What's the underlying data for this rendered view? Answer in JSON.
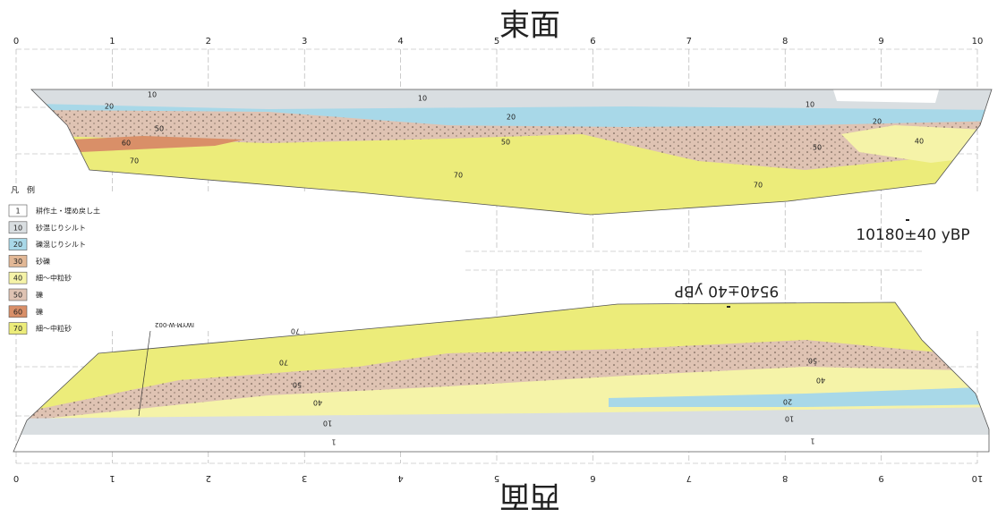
{
  "title_top": "東面",
  "title_bottom": "西面",
  "scale_top": [
    "0",
    "1",
    "2",
    "3",
    "4",
    "5",
    "6",
    "7",
    "8",
    "9",
    "10"
  ],
  "scale_bottom": [
    "0",
    "1",
    "2",
    "3",
    "4",
    "5",
    "6",
    "7",
    "8",
    "9",
    "10"
  ],
  "legend": {
    "title": "凡　例",
    "items": [
      {
        "code": "1",
        "label": "耕作土・埋め戻し土",
        "color": "#ffffff"
      },
      {
        "code": "10",
        "label": "砂混じりシルト",
        "color": "#d9dee1"
      },
      {
        "code": "20",
        "label": "礫混じりシルト",
        "color": "#a8d8e8"
      },
      {
        "code": "30",
        "label": "砂礫",
        "color": "#e2b896"
      },
      {
        "code": "40",
        "label": "細～中粒砂",
        "color": "#f5f3a8"
      },
      {
        "code": "50",
        "label": "礫",
        "color": "#dfc3b3"
      },
      {
        "code": "60",
        "label": "礫",
        "color": "#d98f68"
      },
      {
        "code": "70",
        "label": "細～中粒砂",
        "color": "#ecec7a"
      }
    ]
  },
  "date_east": "10180±40 yBP",
  "date_west": "9540±40 yBP",
  "sample_label": "IWYM-W-002",
  "east_labels": [
    "10",
    "10",
    "10",
    "20",
    "20",
    "20",
    "50",
    "50",
    "50",
    "60",
    "70",
    "70",
    "70",
    "40"
  ],
  "west_labels": [
    "70",
    "70",
    "50",
    "50",
    "40",
    "40",
    "20",
    "10",
    "10",
    "1",
    "1"
  ]
}
